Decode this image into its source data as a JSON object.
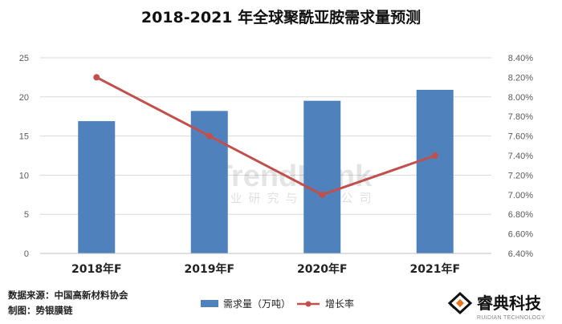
{
  "chart_data": {
    "type": "bar+line",
    "title": "2018-2021 年全球聚酰亚胺需求量预测",
    "categories": [
      "2018年F",
      "2019年F",
      "2020年F",
      "2021年F"
    ],
    "series": [
      {
        "name": "需求量（万吨）",
        "type": "bar",
        "axis": "left",
        "color": "#4F81BD",
        "values": [
          16.9,
          18.2,
          19.5,
          20.9
        ]
      },
      {
        "name": "增长率",
        "type": "line",
        "axis": "right",
        "color": "#C0504D",
        "values": [
          8.2,
          7.6,
          7.0,
          7.4
        ],
        "unit": "%"
      }
    ],
    "ylim_left": [
      0,
      25
    ],
    "yticks_left": [
      "0",
      "5",
      "10",
      "15",
      "20",
      "25"
    ],
    "ylim_right": [
      6.4,
      8.4
    ],
    "yticks_right": [
      "6.40%",
      "6.60%",
      "6.80%",
      "7.00%",
      "7.20%",
      "7.40%",
      "7.60%",
      "7.80%",
      "8.00%",
      "8.20%",
      "8.40%"
    ],
    "grid": true,
    "legend_position": "bottom"
  },
  "source": {
    "line1": "数据来源：中国高新材料协会",
    "line2": "制图：势银膜链"
  },
  "watermark": {
    "en": "TrendBank",
    "cn": "产业研究与顾问公司"
  },
  "brand": {
    "name_cn": "睿典科技",
    "name_en": "RUIDIAN TECHNOLOGY"
  }
}
